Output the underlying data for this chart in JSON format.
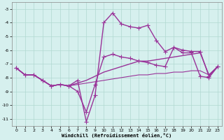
{
  "title": "",
  "xlabel": "Windchill (Refroidissement éolien,°C)",
  "bg_color": "#d6f0ee",
  "line_color": "#993399",
  "grid_color": "#b0d8d0",
  "xlim": [
    -0.5,
    23.5
  ],
  "ylim": [
    -11.5,
    -2.5
  ],
  "yticks": [
    -3,
    -4,
    -5,
    -6,
    -7,
    -8,
    -9,
    -10,
    -11
  ],
  "xticks": [
    0,
    1,
    2,
    3,
    4,
    5,
    6,
    7,
    8,
    9,
    10,
    11,
    12,
    13,
    14,
    15,
    16,
    17,
    18,
    19,
    20,
    21,
    22,
    23
  ],
  "series": [
    {
      "y": [
        -7.3,
        -7.8,
        -7.8,
        -8.2,
        -8.6,
        -8.5,
        -8.6,
        -8.2,
        -11.2,
        -9.3,
        -4.0,
        -3.3,
        -4.1,
        -4.3,
        -4.4,
        -4.2,
        -5.3,
        -6.1,
        -5.8,
        -6.2,
        -6.2,
        -7.9,
        -8.0,
        -7.2
      ],
      "marker": "+",
      "lw": 1.0,
      "ms": 4
    },
    {
      "y": [
        -7.3,
        -7.8,
        -7.8,
        -8.2,
        -8.6,
        -8.5,
        -8.6,
        -9.0,
        -10.5,
        -8.5,
        -6.5,
        -6.3,
        -6.5,
        -6.6,
        -6.8,
        -6.9,
        -7.1,
        -7.2,
        -5.8,
        -6.0,
        -6.1,
        -6.1,
        -7.9,
        -7.2
      ],
      "marker": "+",
      "lw": 1.0,
      "ms": 4
    },
    {
      "y": [
        -7.3,
        -7.8,
        -7.8,
        -8.2,
        -8.6,
        -8.5,
        -8.6,
        -8.4,
        -8.2,
        -7.9,
        -7.6,
        -7.4,
        -7.2,
        -7.0,
        -6.8,
        -6.8,
        -6.7,
        -6.6,
        -6.5,
        -6.4,
        -6.3,
        -6.2,
        -7.8,
        -7.2
      ],
      "marker": null,
      "lw": 1.0,
      "ms": 0
    },
    {
      "y": [
        -7.3,
        -7.8,
        -7.8,
        -8.2,
        -8.6,
        -8.5,
        -8.6,
        -8.5,
        -8.4,
        -8.3,
        -8.2,
        -8.1,
        -8.0,
        -7.9,
        -7.8,
        -7.8,
        -7.7,
        -7.7,
        -7.6,
        -7.6,
        -7.5,
        -7.5,
        -7.8,
        -7.2
      ],
      "marker": null,
      "lw": 0.8,
      "ms": 0
    }
  ]
}
